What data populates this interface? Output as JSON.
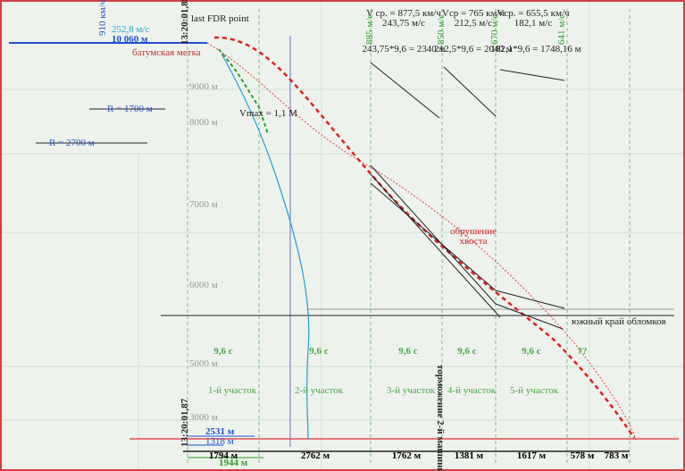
{
  "top_left": {
    "speed_kmh": "910 км/ч",
    "speed_ms": "252,8 м/с",
    "altitude": "10 060 м",
    "time": "13:20:01,88",
    "fdr": "last FDR point",
    "mark": "батумская метка"
  },
  "radii": [
    "R = 1700 м",
    "R = 2700 м"
  ],
  "segments": [
    {
      "v_kmh": "V ср. = 877,5 км/ч",
      "v_ms": "243,75 м/с",
      "calc": "243,75*9,6 = 2340 м"
    },
    {
      "v_kmh": "Vср = 765 км/ч",
      "v_ms": "212,5 м/с",
      "calc": "212,5*9,6 = 2040 м"
    },
    {
      "v_kmh": "Vср. = 655,5 км/ч",
      "v_ms": "182,1 м/с",
      "calc": "182,1*9,6 = 1748,16 м"
    }
  ],
  "vertical_speeds": [
    "885 м/с",
    "850 м/с",
    "670 м/с",
    "641 м/с"
  ],
  "event": [
    "обрушение",
    "хвоста"
  ],
  "intervals": [
    "9,6 с",
    "9,6 с",
    "9,6 с",
    "9,6 с",
    "9,6 с",
    "??"
  ],
  "sections": [
    "1-й участок",
    "2-й участок",
    "3-й участок",
    "4-й участок",
    "5-й участок"
  ],
  "braking": "торможение 2-й машины",
  "time_bottom": "13:20:01,87",
  "distances_top": [
    "2531 м",
    "1318 м",
    "1944 м"
  ],
  "distances_bottom": [
    "1794 м",
    "2762 м",
    "1762 м",
    "1381 м",
    "1617 м",
    "578 м",
    "783 м"
  ],
  "debris": "южный край обломков",
  "altitudes": [
    "9000 м",
    "8000 м",
    "7000 м",
    "6000 м",
    "5000 м",
    "3000 м"
  ],
  "vmax": "Vmax = 1,1 M"
}
